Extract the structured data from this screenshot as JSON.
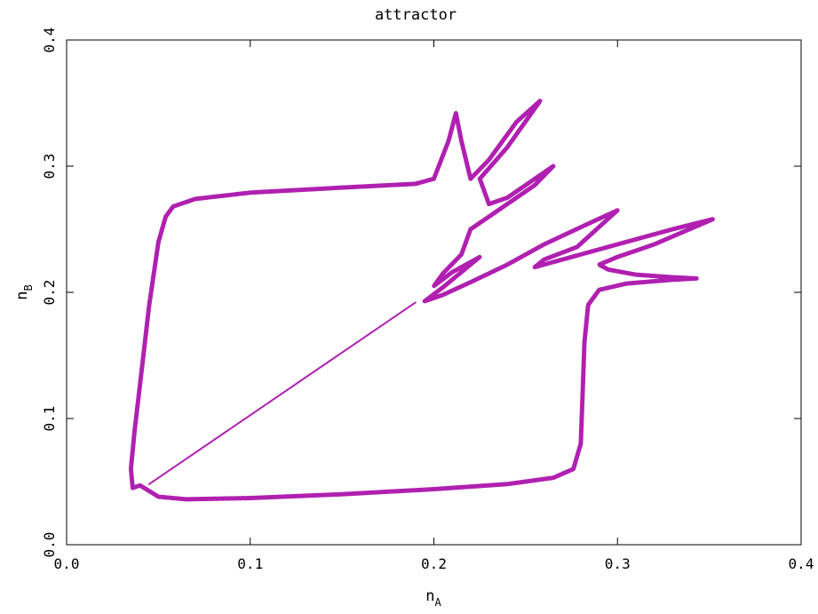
{
  "chart_data": {
    "type": "scatter",
    "title": "attractor",
    "xlabel": {
      "base": "n",
      "sub": "A"
    },
    "ylabel": {
      "base": "n",
      "sub": "B"
    },
    "xlim": [
      0.0,
      0.4
    ],
    "ylim": [
      0.0,
      0.4
    ],
    "xticks": [
      "0.0",
      "0.1",
      "0.2",
      "0.3",
      "0.4"
    ],
    "yticks": [
      "0.0",
      "0.1",
      "0.2",
      "0.3",
      "0.4"
    ],
    "grid": false,
    "legend": "none",
    "color": "#b020b0",
    "series": [
      {
        "style": "band",
        "points": [
          [
            0.04,
            0.047
          ],
          [
            0.05,
            0.038
          ],
          [
            0.065,
            0.036
          ],
          [
            0.1,
            0.037
          ],
          [
            0.15,
            0.04
          ],
          [
            0.2,
            0.044
          ],
          [
            0.24,
            0.048
          ],
          [
            0.265,
            0.053
          ],
          [
            0.276,
            0.06
          ],
          [
            0.28,
            0.08
          ],
          [
            0.281,
            0.12
          ],
          [
            0.282,
            0.16
          ],
          [
            0.284,
            0.19
          ],
          [
            0.29,
            0.202
          ],
          [
            0.305,
            0.207
          ],
          [
            0.33,
            0.21
          ],
          [
            0.343,
            0.211
          ],
          [
            0.33,
            0.212
          ],
          [
            0.31,
            0.214
          ],
          [
            0.295,
            0.218
          ],
          [
            0.29,
            0.222
          ],
          [
            0.3,
            0.228
          ],
          [
            0.32,
            0.238
          ],
          [
            0.352,
            0.258
          ],
          [
            0.33,
            0.25
          ],
          [
            0.3,
            0.238
          ],
          [
            0.275,
            0.228
          ],
          [
            0.255,
            0.22
          ],
          [
            0.26,
            0.226
          ],
          [
            0.278,
            0.236
          ],
          [
            0.3,
            0.265
          ],
          [
            0.285,
            0.255
          ],
          [
            0.26,
            0.238
          ],
          [
            0.24,
            0.222
          ],
          [
            0.22,
            0.208
          ],
          [
            0.205,
            0.198
          ],
          [
            0.195,
            0.193
          ],
          [
            0.205,
            0.204
          ],
          [
            0.225,
            0.228
          ],
          [
            0.21,
            0.216
          ],
          [
            0.2,
            0.205
          ],
          [
            0.205,
            0.215
          ],
          [
            0.215,
            0.23
          ],
          [
            0.22,
            0.25
          ],
          [
            0.235,
            0.265
          ],
          [
            0.255,
            0.285
          ],
          [
            0.265,
            0.3
          ],
          [
            0.255,
            0.29
          ],
          [
            0.24,
            0.275
          ],
          [
            0.23,
            0.27
          ],
          [
            0.225,
            0.29
          ],
          [
            0.24,
            0.315
          ],
          [
            0.258,
            0.352
          ],
          [
            0.245,
            0.335
          ],
          [
            0.23,
            0.305
          ],
          [
            0.22,
            0.29
          ],
          [
            0.215,
            0.32
          ],
          [
            0.212,
            0.342
          ],
          [
            0.208,
            0.32
          ],
          [
            0.2,
            0.29
          ],
          [
            0.19,
            0.286
          ],
          [
            0.15,
            0.283
          ],
          [
            0.1,
            0.279
          ],
          [
            0.07,
            0.274
          ],
          [
            0.058,
            0.268
          ],
          [
            0.054,
            0.26
          ],
          [
            0.05,
            0.24
          ],
          [
            0.045,
            0.19
          ],
          [
            0.041,
            0.14
          ],
          [
            0.037,
            0.09
          ],
          [
            0.035,
            0.06
          ],
          [
            0.036,
            0.045
          ],
          [
            0.04,
            0.047
          ]
        ]
      },
      {
        "style": "line",
        "points": [
          [
            0.045,
            0.048
          ],
          [
            0.19,
            0.192
          ]
        ]
      }
    ]
  }
}
